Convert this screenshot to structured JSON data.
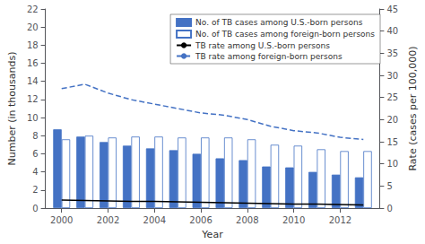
{
  "chart_data": {
    "type": "bar",
    "xlabel": "Year",
    "ylabel": "Number (in thousands)",
    "y2label": "Rate (cases per 100,000)",
    "x": [
      2000,
      2001,
      2002,
      2003,
      2004,
      2005,
      2006,
      2007,
      2008,
      2009,
      2010,
      2011,
      2012,
      2013
    ],
    "xlim": [
      1999.3,
      2013.7
    ],
    "xticks": [
      2000,
      2002,
      2004,
      2006,
      2008,
      2010,
      2012
    ],
    "ylim": [
      0,
      22
    ],
    "yticks": [
      0,
      2,
      4,
      6,
      8,
      10,
      12,
      14,
      16,
      18,
      20,
      22
    ],
    "y2lim": [
      0,
      45
    ],
    "y2ticks": [
      0,
      5,
      10,
      15,
      20,
      25,
      30,
      35,
      40,
      45
    ],
    "grid": false,
    "legend": "upper right",
    "series": [
      {
        "name": "No. of TB cases among U.S.-born persons",
        "type": "bar",
        "axis": "y",
        "color": "#4472C4",
        "values": [
          8.7,
          7.9,
          7.3,
          6.9,
          6.6,
          6.4,
          6.0,
          5.5,
          5.3,
          4.6,
          4.5,
          4.0,
          3.7,
          3.4
        ]
      },
      {
        "name": "No. of TB cases among foreign-born persons",
        "type": "bar",
        "axis": "y",
        "color": "white",
        "values": [
          7.6,
          8.0,
          7.8,
          7.9,
          7.9,
          7.8,
          7.8,
          7.8,
          7.6,
          7.0,
          6.9,
          6.5,
          6.3,
          6.3
        ]
      },
      {
        "name": "TB rate among U.S.-born persons",
        "type": "line",
        "axis": "y2",
        "color": "black",
        "line_style": "solid",
        "values": [
          1.8,
          1.7,
          1.6,
          1.5,
          1.5,
          1.4,
          1.3,
          1.2,
          1.1,
          1.0,
          0.9,
          0.9,
          0.8,
          0.7
        ]
      },
      {
        "name": "TB rate among foreign-born persons",
        "type": "line",
        "axis": "y2",
        "color": "#4472C4",
        "line_style": "dashed",
        "values": [
          27.0,
          28.0,
          26.0,
          24.5,
          23.5,
          22.5,
          21.5,
          21.0,
          20.0,
          18.5,
          17.5,
          17.0,
          16.0,
          15.5
        ]
      }
    ]
  }
}
